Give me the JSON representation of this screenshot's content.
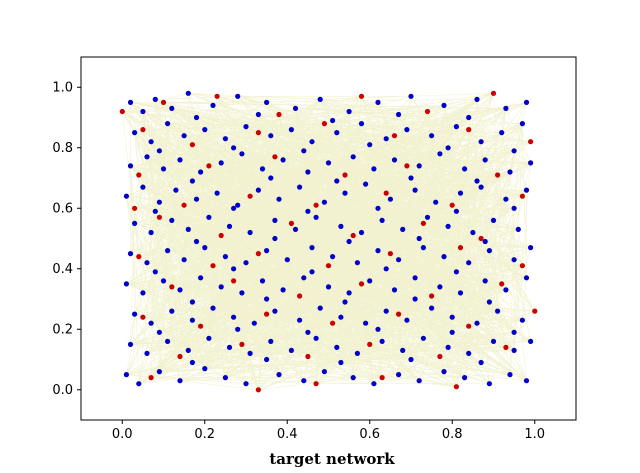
{
  "chart_data": {
    "type": "scatter",
    "title": "",
    "xlabel": "target network",
    "ylabel": "",
    "xlim": [
      -0.1,
      1.1
    ],
    "ylim": [
      -0.1,
      1.1
    ],
    "x_ticks": [
      0.0,
      0.2,
      0.4,
      0.6,
      0.8,
      1.0
    ],
    "y_ticks": [
      0.0,
      0.2,
      0.4,
      0.6,
      0.8,
      1.0
    ],
    "x_tick_labels": [
      "0.0",
      "0.2",
      "0.4",
      "0.6",
      "0.8",
      "1.0"
    ],
    "y_tick_labels": [
      "0.0",
      "0.2",
      "0.4",
      "0.6",
      "0.8",
      "1.0"
    ],
    "grid": false,
    "legend": "none",
    "series": [
      {
        "color": "#0000cc",
        "points": [
          [
            0.02,
            0.95
          ],
          [
            0.05,
            0.92
          ],
          [
            0.08,
            0.96
          ],
          [
            0.12,
            0.93
          ],
          [
            0.16,
            0.98
          ],
          [
            0.22,
            0.94
          ],
          [
            0.28,
            0.97
          ],
          [
            0.35,
            0.95
          ],
          [
            0.42,
            0.93
          ],
          [
            0.48,
            0.96
          ],
          [
            0.55,
            0.92
          ],
          [
            0.62,
            0.95
          ],
          [
            0.7,
            0.97
          ],
          [
            0.78,
            0.94
          ],
          [
            0.86,
            0.96
          ],
          [
            0.93,
            0.93
          ],
          [
            0.98,
            0.95
          ],
          [
            0.03,
            0.85
          ],
          [
            0.07,
            0.82
          ],
          [
            0.11,
            0.88
          ],
          [
            0.15,
            0.84
          ],
          [
            0.2,
            0.86
          ],
          [
            0.25,
            0.83
          ],
          [
            0.3,
            0.87
          ],
          [
            0.36,
            0.84
          ],
          [
            0.41,
            0.86
          ],
          [
            0.46,
            0.82
          ],
          [
            0.52,
            0.85
          ],
          [
            0.58,
            0.88
          ],
          [
            0.64,
            0.83
          ],
          [
            0.69,
            0.86
          ],
          [
            0.75,
            0.84
          ],
          [
            0.81,
            0.87
          ],
          [
            0.87,
            0.82
          ],
          [
            0.92,
            0.85
          ],
          [
            0.97,
            0.88
          ],
          [
            0.02,
            0.74
          ],
          [
            0.06,
            0.77
          ],
          [
            0.1,
            0.73
          ],
          [
            0.14,
            0.76
          ],
          [
            0.19,
            0.72
          ],
          [
            0.24,
            0.75
          ],
          [
            0.29,
            0.78
          ],
          [
            0.34,
            0.73
          ],
          [
            0.39,
            0.76
          ],
          [
            0.45,
            0.72
          ],
          [
            0.5,
            0.75
          ],
          [
            0.56,
            0.77
          ],
          [
            0.61,
            0.73
          ],
          [
            0.66,
            0.76
          ],
          [
            0.72,
            0.74
          ],
          [
            0.77,
            0.78
          ],
          [
            0.83,
            0.73
          ],
          [
            0.88,
            0.76
          ],
          [
            0.94,
            0.72
          ],
          [
            0.99,
            0.75
          ],
          [
            0.01,
            0.64
          ],
          [
            0.05,
            0.67
          ],
          [
            0.09,
            0.62
          ],
          [
            0.13,
            0.66
          ],
          [
            0.18,
            0.63
          ],
          [
            0.23,
            0.65
          ],
          [
            0.28,
            0.61
          ],
          [
            0.33,
            0.66
          ],
          [
            0.38,
            0.63
          ],
          [
            0.43,
            0.67
          ],
          [
            0.49,
            0.62
          ],
          [
            0.54,
            0.65
          ],
          [
            0.59,
            0.68
          ],
          [
            0.65,
            0.63
          ],
          [
            0.71,
            0.66
          ],
          [
            0.76,
            0.62
          ],
          [
            0.82,
            0.65
          ],
          [
            0.87,
            0.67
          ],
          [
            0.93,
            0.63
          ],
          [
            0.98,
            0.66
          ],
          [
            0.03,
            0.55
          ],
          [
            0.07,
            0.52
          ],
          [
            0.12,
            0.56
          ],
          [
            0.16,
            0.53
          ],
          [
            0.21,
            0.57
          ],
          [
            0.26,
            0.54
          ],
          [
            0.31,
            0.52
          ],
          [
            0.37,
            0.56
          ],
          [
            0.42,
            0.53
          ],
          [
            0.47,
            0.57
          ],
          [
            0.53,
            0.54
          ],
          [
            0.58,
            0.52
          ],
          [
            0.63,
            0.56
          ],
          [
            0.68,
            0.53
          ],
          [
            0.74,
            0.57
          ],
          [
            0.79,
            0.54
          ],
          [
            0.85,
            0.52
          ],
          [
            0.9,
            0.56
          ],
          [
            0.96,
            0.53
          ],
          [
            0.02,
            0.45
          ],
          [
            0.06,
            0.42
          ],
          [
            0.11,
            0.46
          ],
          [
            0.15,
            0.43
          ],
          [
            0.2,
            0.47
          ],
          [
            0.25,
            0.44
          ],
          [
            0.3,
            0.42
          ],
          [
            0.35,
            0.46
          ],
          [
            0.4,
            0.43
          ],
          [
            0.46,
            0.47
          ],
          [
            0.51,
            0.44
          ],
          [
            0.57,
            0.42
          ],
          [
            0.62,
            0.46
          ],
          [
            0.67,
            0.43
          ],
          [
            0.73,
            0.47
          ],
          [
            0.78,
            0.44
          ],
          [
            0.84,
            0.42
          ],
          [
            0.89,
            0.46
          ],
          [
            0.95,
            0.43
          ],
          [
            0.99,
            0.47
          ],
          [
            0.01,
            0.35
          ],
          [
            0.05,
            0.32
          ],
          [
            0.1,
            0.36
          ],
          [
            0.14,
            0.33
          ],
          [
            0.19,
            0.37
          ],
          [
            0.24,
            0.34
          ],
          [
            0.29,
            0.32
          ],
          [
            0.34,
            0.36
          ],
          [
            0.39,
            0.33
          ],
          [
            0.44,
            0.37
          ],
          [
            0.5,
            0.34
          ],
          [
            0.55,
            0.32
          ],
          [
            0.6,
            0.36
          ],
          [
            0.66,
            0.33
          ],
          [
            0.71,
            0.37
          ],
          [
            0.77,
            0.34
          ],
          [
            0.82,
            0.32
          ],
          [
            0.88,
            0.36
          ],
          [
            0.93,
            0.33
          ],
          [
            0.98,
            0.37
          ],
          [
            0.03,
            0.25
          ],
          [
            0.07,
            0.22
          ],
          [
            0.12,
            0.26
          ],
          [
            0.17,
            0.23
          ],
          [
            0.22,
            0.27
          ],
          [
            0.27,
            0.24
          ],
          [
            0.32,
            0.22
          ],
          [
            0.37,
            0.26
          ],
          [
            0.43,
            0.23
          ],
          [
            0.48,
            0.27
          ],
          [
            0.53,
            0.24
          ],
          [
            0.59,
            0.22
          ],
          [
            0.64,
            0.26
          ],
          [
            0.69,
            0.23
          ],
          [
            0.75,
            0.27
          ],
          [
            0.8,
            0.24
          ],
          [
            0.86,
            0.22
          ],
          [
            0.91,
            0.26
          ],
          [
            0.97,
            0.23
          ],
          [
            0.02,
            0.15
          ],
          [
            0.06,
            0.12
          ],
          [
            0.11,
            0.16
          ],
          [
            0.16,
            0.13
          ],
          [
            0.21,
            0.17
          ],
          [
            0.26,
            0.14
          ],
          [
            0.31,
            0.12
          ],
          [
            0.36,
            0.16
          ],
          [
            0.41,
            0.13
          ],
          [
            0.47,
            0.17
          ],
          [
            0.52,
            0.14
          ],
          [
            0.57,
            0.12
          ],
          [
            0.63,
            0.16
          ],
          [
            0.68,
            0.13
          ],
          [
            0.73,
            0.17
          ],
          [
            0.79,
            0.14
          ],
          [
            0.84,
            0.12
          ],
          [
            0.9,
            0.16
          ],
          [
            0.95,
            0.13
          ],
          [
            0.99,
            0.16
          ],
          [
            0.01,
            0.05
          ],
          [
            0.04,
            0.02
          ],
          [
            0.09,
            0.06
          ],
          [
            0.14,
            0.03
          ],
          [
            0.2,
            0.07
          ],
          [
            0.25,
            0.04
          ],
          [
            0.3,
            0.02
          ],
          [
            0.38,
            0.05
          ],
          [
            0.44,
            0.03
          ],
          [
            0.49,
            0.06
          ],
          [
            0.56,
            0.04
          ],
          [
            0.61,
            0.02
          ],
          [
            0.67,
            0.05
          ],
          [
            0.72,
            0.03
          ],
          [
            0.78,
            0.06
          ],
          [
            0.83,
            0.04
          ],
          [
            0.89,
            0.02
          ],
          [
            0.94,
            0.05
          ],
          [
            0.98,
            0.03
          ],
          [
            0.18,
            0.9
          ],
          [
            0.33,
            0.91
          ],
          [
            0.51,
            0.89
          ],
          [
            0.67,
            0.91
          ],
          [
            0.84,
            0.9
          ],
          [
            0.09,
            0.79
          ],
          [
            0.27,
            0.8
          ],
          [
            0.44,
            0.79
          ],
          [
            0.6,
            0.81
          ],
          [
            0.79,
            0.8
          ],
          [
            0.95,
            0.79
          ],
          [
            0.17,
            0.69
          ],
          [
            0.36,
            0.7
          ],
          [
            0.52,
            0.69
          ],
          [
            0.7,
            0.7
          ],
          [
            0.86,
            0.69
          ],
          [
            0.08,
            0.59
          ],
          [
            0.27,
            0.6
          ],
          [
            0.45,
            0.59
          ],
          [
            0.62,
            0.6
          ],
          [
            0.81,
            0.59
          ],
          [
            0.95,
            0.6
          ],
          [
            0.18,
            0.49
          ],
          [
            0.37,
            0.5
          ],
          [
            0.55,
            0.49
          ],
          [
            0.72,
            0.5
          ],
          [
            0.88,
            0.49
          ],
          [
            0.08,
            0.39
          ],
          [
            0.27,
            0.4
          ],
          [
            0.46,
            0.39
          ],
          [
            0.64,
            0.4
          ],
          [
            0.81,
            0.39
          ],
          [
            0.17,
            0.29
          ],
          [
            0.35,
            0.3
          ],
          [
            0.54,
            0.29
          ],
          [
            0.71,
            0.3
          ],
          [
            0.89,
            0.29
          ],
          [
            0.09,
            0.19
          ],
          [
            0.28,
            0.2
          ],
          [
            0.45,
            0.19
          ],
          [
            0.62,
            0.2
          ],
          [
            0.8,
            0.19
          ],
          [
            0.95,
            0.19
          ],
          [
            0.17,
            0.09
          ],
          [
            0.35,
            0.1
          ],
          [
            0.53,
            0.09
          ],
          [
            0.7,
            0.1
          ],
          [
            0.87,
            0.09
          ]
        ]
      },
      {
        "color": "#cc0000",
        "points": [
          [
            0.0,
            0.92
          ],
          [
            0.1,
            0.95
          ],
          [
            0.23,
            0.97
          ],
          [
            0.38,
            0.91
          ],
          [
            0.58,
            0.97
          ],
          [
            0.74,
            0.92
          ],
          [
            0.9,
            0.98
          ],
          [
            0.05,
            0.86
          ],
          [
            0.17,
            0.81
          ],
          [
            0.33,
            0.85
          ],
          [
            0.49,
            0.88
          ],
          [
            0.66,
            0.84
          ],
          [
            0.84,
            0.86
          ],
          [
            0.99,
            0.82
          ],
          [
            0.04,
            0.71
          ],
          [
            0.21,
            0.74
          ],
          [
            0.37,
            0.77
          ],
          [
            0.54,
            0.71
          ],
          [
            0.69,
            0.74
          ],
          [
            0.91,
            0.71
          ],
          [
            0.03,
            0.6
          ],
          [
            0.15,
            0.61
          ],
          [
            0.31,
            0.64
          ],
          [
            0.47,
            0.61
          ],
          [
            0.64,
            0.65
          ],
          [
            0.8,
            0.61
          ],
          [
            0.97,
            0.64
          ],
          [
            0.09,
            0.57
          ],
          [
            0.24,
            0.51
          ],
          [
            0.41,
            0.55
          ],
          [
            0.56,
            0.51
          ],
          [
            0.73,
            0.55
          ],
          [
            0.87,
            0.5
          ],
          [
            0.04,
            0.44
          ],
          [
            0.22,
            0.41
          ],
          [
            0.33,
            0.45
          ],
          [
            0.5,
            0.41
          ],
          [
            0.65,
            0.45
          ],
          [
            0.82,
            0.47
          ],
          [
            0.97,
            0.41
          ],
          [
            0.12,
            0.34
          ],
          [
            0.27,
            0.36
          ],
          [
            0.43,
            0.31
          ],
          [
            0.58,
            0.35
          ],
          [
            0.75,
            0.31
          ],
          [
            0.92,
            0.35
          ],
          [
            0.05,
            0.24
          ],
          [
            0.19,
            0.21
          ],
          [
            0.35,
            0.25
          ],
          [
            0.51,
            0.22
          ],
          [
            0.67,
            0.25
          ],
          [
            0.84,
            0.21
          ],
          [
            1.0,
            0.26
          ],
          [
            0.14,
            0.11
          ],
          [
            0.29,
            0.15
          ],
          [
            0.45,
            0.11
          ],
          [
            0.6,
            0.15
          ],
          [
            0.77,
            0.11
          ],
          [
            0.93,
            0.14
          ],
          [
            0.07,
            0.04
          ],
          [
            0.33,
            0.0
          ],
          [
            0.47,
            0.02
          ],
          [
            0.63,
            0.04
          ],
          [
            0.81,
            0.01
          ]
        ]
      }
    ]
  }
}
